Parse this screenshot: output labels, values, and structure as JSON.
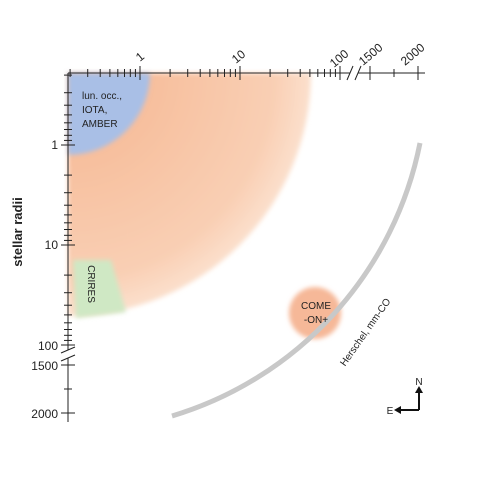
{
  "top_axis": {
    "labels": [
      "1",
      "10",
      "100",
      "1500",
      "2000"
    ]
  },
  "left_axis": {
    "title": "stellar radii",
    "labels": [
      "1",
      "10",
      "100",
      "1500",
      "2000"
    ]
  },
  "regions": {
    "interferometry": {
      "lines": [
        "lun. occ.,",
        "IOTA,",
        "AMBER"
      ]
    },
    "crires": {
      "label": "CRIRES"
    },
    "comeon": {
      "lines": [
        "COME",
        "-ON+"
      ]
    },
    "herschel": {
      "label": "Herschel, mm-CO"
    }
  },
  "compass": {
    "north": "N",
    "east": "E"
  }
}
